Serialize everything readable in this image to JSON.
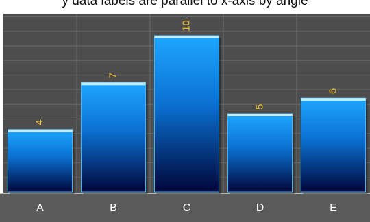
{
  "caption": "y data labels are parallel to x-axis by angle",
  "colors": {
    "plot_background": "#4d4d4d",
    "axis_band": "#5a5a5a",
    "grid": "#6a6a6a",
    "bar_top": "#1ea7ff",
    "bar_bottom": "#00063a",
    "bar_highlight": "#bfeaff",
    "value_label": "#f2c230",
    "category_label": "#ffffff"
  },
  "chart_data": {
    "type": "bar",
    "categories": [
      "A",
      "B",
      "C",
      "D",
      "E"
    ],
    "values": [
      4,
      7,
      10,
      5,
      6
    ],
    "title": "",
    "xlabel": "",
    "ylabel": "",
    "ylim": [
      0,
      11.4
    ],
    "grid": true,
    "legend": "none",
    "data_labels": true,
    "data_label_orientation": "rotated-90"
  }
}
